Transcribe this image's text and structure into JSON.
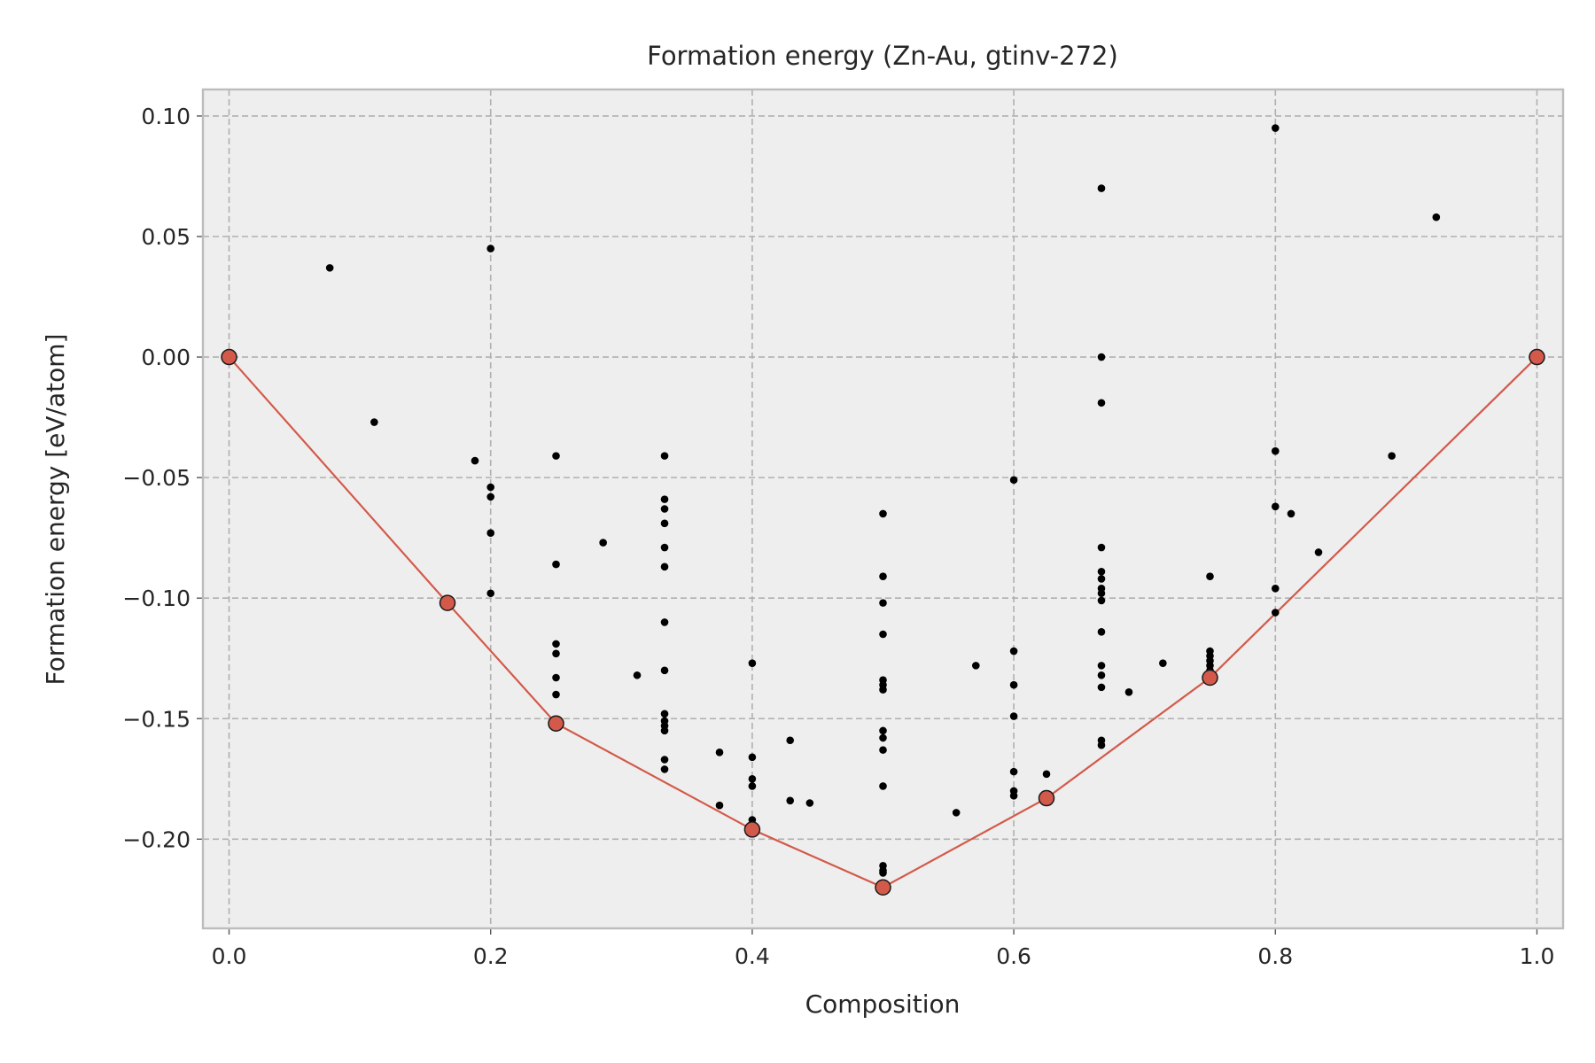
{
  "chart_data": {
    "type": "scatter",
    "title": "Formation energy (Zn-Au, gtinv-272)",
    "xlabel": "Composition",
    "ylabel": "Formation energy [eV/atom]",
    "xlim": [
      -0.02,
      1.02
    ],
    "ylim": [
      -0.237,
      0.111
    ],
    "grid": true,
    "x_ticks": [
      0.0,
      0.2,
      0.4,
      0.6,
      0.8,
      1.0
    ],
    "x_tick_labels": [
      "0.0",
      "0.2",
      "0.4",
      "0.6",
      "0.8",
      "1.0"
    ],
    "y_ticks": [
      0.1,
      0.05,
      0.0,
      -0.05,
      -0.1,
      -0.15,
      -0.2
    ],
    "y_tick_labels": [
      "0.10",
      "0.05",
      "0.00",
      "−0.05",
      "−0.10",
      "−0.15",
      "−0.20"
    ],
    "colors": {
      "hull": "#d35a4a",
      "hull_marker_edge": "#1a1a1a",
      "points": "#000000",
      "plot_background": "#eeeeee",
      "grid": "#b0b0b0"
    },
    "series": [
      {
        "kind": "structures",
        "points": [
          [
            0.077,
            0.037
          ],
          [
            0.111,
            -0.027
          ],
          [
            0.188,
            -0.043
          ],
          [
            0.2,
            0.045
          ],
          [
            0.2,
            -0.054
          ],
          [
            0.2,
            -0.058
          ],
          [
            0.2,
            -0.073
          ],
          [
            0.2,
            -0.098
          ],
          [
            0.25,
            -0.041
          ],
          [
            0.25,
            -0.086
          ],
          [
            0.25,
            -0.119
          ],
          [
            0.25,
            -0.123
          ],
          [
            0.25,
            -0.133
          ],
          [
            0.25,
            -0.14
          ],
          [
            0.286,
            -0.077
          ],
          [
            0.312,
            -0.132
          ],
          [
            0.333,
            -0.041
          ],
          [
            0.333,
            -0.059
          ],
          [
            0.333,
            -0.063
          ],
          [
            0.333,
            -0.069
          ],
          [
            0.333,
            -0.079
          ],
          [
            0.333,
            -0.087
          ],
          [
            0.333,
            -0.11
          ],
          [
            0.333,
            -0.13
          ],
          [
            0.333,
            -0.148
          ],
          [
            0.333,
            -0.151
          ],
          [
            0.333,
            -0.153
          ],
          [
            0.333,
            -0.155
          ],
          [
            0.333,
            -0.167
          ],
          [
            0.333,
            -0.171
          ],
          [
            0.375,
            -0.164
          ],
          [
            0.375,
            -0.186
          ],
          [
            0.4,
            -0.127
          ],
          [
            0.4,
            -0.166
          ],
          [
            0.4,
            -0.175
          ],
          [
            0.4,
            -0.178
          ],
          [
            0.4,
            -0.192
          ],
          [
            0.429,
            -0.159
          ],
          [
            0.429,
            -0.184
          ],
          [
            0.444,
            -0.185
          ],
          [
            0.5,
            -0.065
          ],
          [
            0.5,
            -0.091
          ],
          [
            0.5,
            -0.102
          ],
          [
            0.5,
            -0.115
          ],
          [
            0.5,
            -0.134
          ],
          [
            0.5,
            -0.136
          ],
          [
            0.5,
            -0.138
          ],
          [
            0.5,
            -0.155
          ],
          [
            0.5,
            -0.158
          ],
          [
            0.5,
            -0.163
          ],
          [
            0.5,
            -0.178
          ],
          [
            0.5,
            -0.211
          ],
          [
            0.5,
            -0.213
          ],
          [
            0.5,
            -0.214
          ],
          [
            0.556,
            -0.189
          ],
          [
            0.571,
            -0.128
          ],
          [
            0.6,
            -0.051
          ],
          [
            0.6,
            -0.122
          ],
          [
            0.6,
            -0.136
          ],
          [
            0.6,
            -0.149
          ],
          [
            0.6,
            -0.172
          ],
          [
            0.6,
            -0.18
          ],
          [
            0.6,
            -0.182
          ],
          [
            0.625,
            -0.173
          ],
          [
            0.667,
            0.07
          ],
          [
            0.667,
            0.0
          ],
          [
            0.667,
            -0.019
          ],
          [
            0.667,
            -0.079
          ],
          [
            0.667,
            -0.089
          ],
          [
            0.667,
            -0.092
          ],
          [
            0.667,
            -0.096
          ],
          [
            0.667,
            -0.098
          ],
          [
            0.667,
            -0.101
          ],
          [
            0.667,
            -0.114
          ],
          [
            0.667,
            -0.128
          ],
          [
            0.667,
            -0.132
          ],
          [
            0.667,
            -0.137
          ],
          [
            0.667,
            -0.159
          ],
          [
            0.667,
            -0.161
          ],
          [
            0.688,
            -0.139
          ],
          [
            0.714,
            -0.127
          ],
          [
            0.75,
            -0.091
          ],
          [
            0.75,
            -0.122
          ],
          [
            0.75,
            -0.124
          ],
          [
            0.75,
            -0.126
          ],
          [
            0.75,
            -0.128
          ],
          [
            0.75,
            -0.13
          ],
          [
            0.8,
            0.095
          ],
          [
            0.8,
            -0.039
          ],
          [
            0.8,
            -0.062
          ],
          [
            0.8,
            -0.096
          ],
          [
            0.8,
            -0.106
          ],
          [
            0.812,
            -0.065
          ],
          [
            0.833,
            -0.081
          ],
          [
            0.889,
            -0.041
          ],
          [
            0.923,
            0.058
          ]
        ]
      },
      {
        "kind": "convex_hull",
        "points": [
          [
            0.0,
            0.0
          ],
          [
            0.167,
            -0.102
          ],
          [
            0.25,
            -0.152
          ],
          [
            0.4,
            -0.196
          ],
          [
            0.5,
            -0.22
          ],
          [
            0.625,
            -0.183
          ],
          [
            0.75,
            -0.133
          ],
          [
            1.0,
            0.0
          ]
        ]
      }
    ]
  }
}
